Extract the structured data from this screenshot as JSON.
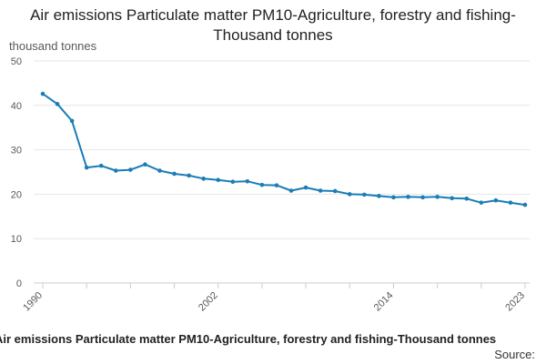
{
  "colors": {
    "series": "#1a7db6",
    "grid": "#e6e6e6",
    "axis": "#cccccc",
    "text": "#595959"
  },
  "footer": {
    "title": "Air emissions Particulate matter PM10-Agriculture, forestry and fishing-Thousand tonnes",
    "source": "Source:"
  },
  "chart_data": {
    "type": "line",
    "title": "Air emissions Particulate matter PM10-Agriculture, forestry and fishing-Thousand tonnes",
    "xlabel": "",
    "ylabel": "thousand tonnes",
    "ylim": [
      0,
      50
    ],
    "yticks": [
      0,
      10,
      20,
      30,
      40,
      50
    ],
    "xticks": [
      1990,
      2002,
      2014,
      2023
    ],
    "grid": true,
    "legend": "none",
    "x": [
      1990,
      1991,
      1992,
      1993,
      1994,
      1995,
      1996,
      1997,
      1998,
      1999,
      2000,
      2001,
      2002,
      2003,
      2004,
      2005,
      2006,
      2007,
      2008,
      2009,
      2010,
      2011,
      2012,
      2013,
      2014,
      2015,
      2016,
      2017,
      2018,
      2019,
      2020,
      2021,
      2022,
      2023
    ],
    "series": [
      {
        "name": "PM10 Agriculture, forestry and fishing",
        "values": [
          42.6,
          40.3,
          36.5,
          26.0,
          26.4,
          25.3,
          25.5,
          26.7,
          25.3,
          24.6,
          24.2,
          23.5,
          23.2,
          22.8,
          22.9,
          22.1,
          22.0,
          20.8,
          21.5,
          20.8,
          20.7,
          20.0,
          19.9,
          19.6,
          19.3,
          19.4,
          19.3,
          19.4,
          19.1,
          19.0,
          18.1,
          18.6,
          18.1,
          17.6
        ]
      }
    ]
  }
}
